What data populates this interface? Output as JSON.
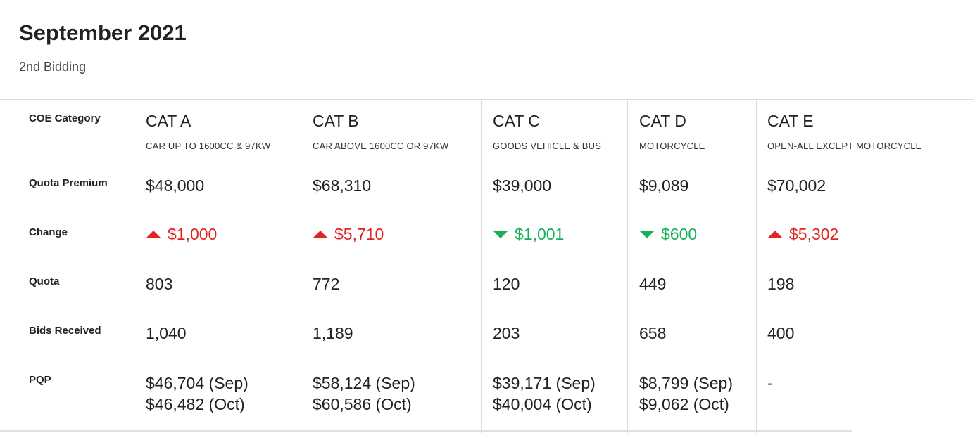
{
  "header": {
    "title": "September 2021",
    "subtitle": "2nd Bidding"
  },
  "row_labels": {
    "category": "COE Category",
    "quota_premium": "Quota Premium",
    "change": "Change",
    "quota": "Quota",
    "bids_received": "Bids Received",
    "pqp": "PQP"
  },
  "colors": {
    "up": "#e02424",
    "down": "#16b05a"
  },
  "categories": [
    {
      "name": "CAT A",
      "desc": "CAR UP TO 1600CC & 97KW",
      "premium": "$48,000",
      "change": "$1,000",
      "direction": "up",
      "direction_icon": "triangle-up-icon",
      "quota": "803",
      "bids": "1,040",
      "pqp_sep": "$46,704 (Sep)",
      "pqp_oct": "$46,482 (Oct)"
    },
    {
      "name": "CAT B",
      "desc": "CAR ABOVE 1600CC OR 97KW",
      "premium": "$68,310",
      "change": "$5,710",
      "direction": "up",
      "direction_icon": "triangle-up-icon",
      "quota": "772",
      "bids": "1,189",
      "pqp_sep": "$58,124 (Sep)",
      "pqp_oct": "$60,586 (Oct)"
    },
    {
      "name": "CAT C",
      "desc": "GOODS VEHICLE & BUS",
      "premium": "$39,000",
      "change": "$1,001",
      "direction": "down",
      "direction_icon": "triangle-down-icon",
      "quota": "120",
      "bids": "203",
      "pqp_sep": "$39,171 (Sep)",
      "pqp_oct": "$40,004 (Oct)"
    },
    {
      "name": "CAT D",
      "desc": "MOTORCYCLE",
      "premium": "$9,089",
      "change": "$600",
      "direction": "down",
      "direction_icon": "triangle-down-icon",
      "quota": "449",
      "bids": "658",
      "pqp_sep": "$8,799 (Sep)",
      "pqp_oct": "$9,062 (Oct)"
    },
    {
      "name": "CAT E",
      "desc": "OPEN-ALL EXCEPT MOTORCYCLE",
      "premium": "$70,002",
      "change": "$5,302",
      "direction": "up",
      "direction_icon": "triangle-up-icon",
      "quota": "198",
      "bids": "400",
      "pqp_sep": "-",
      "pqp_oct": ""
    }
  ]
}
